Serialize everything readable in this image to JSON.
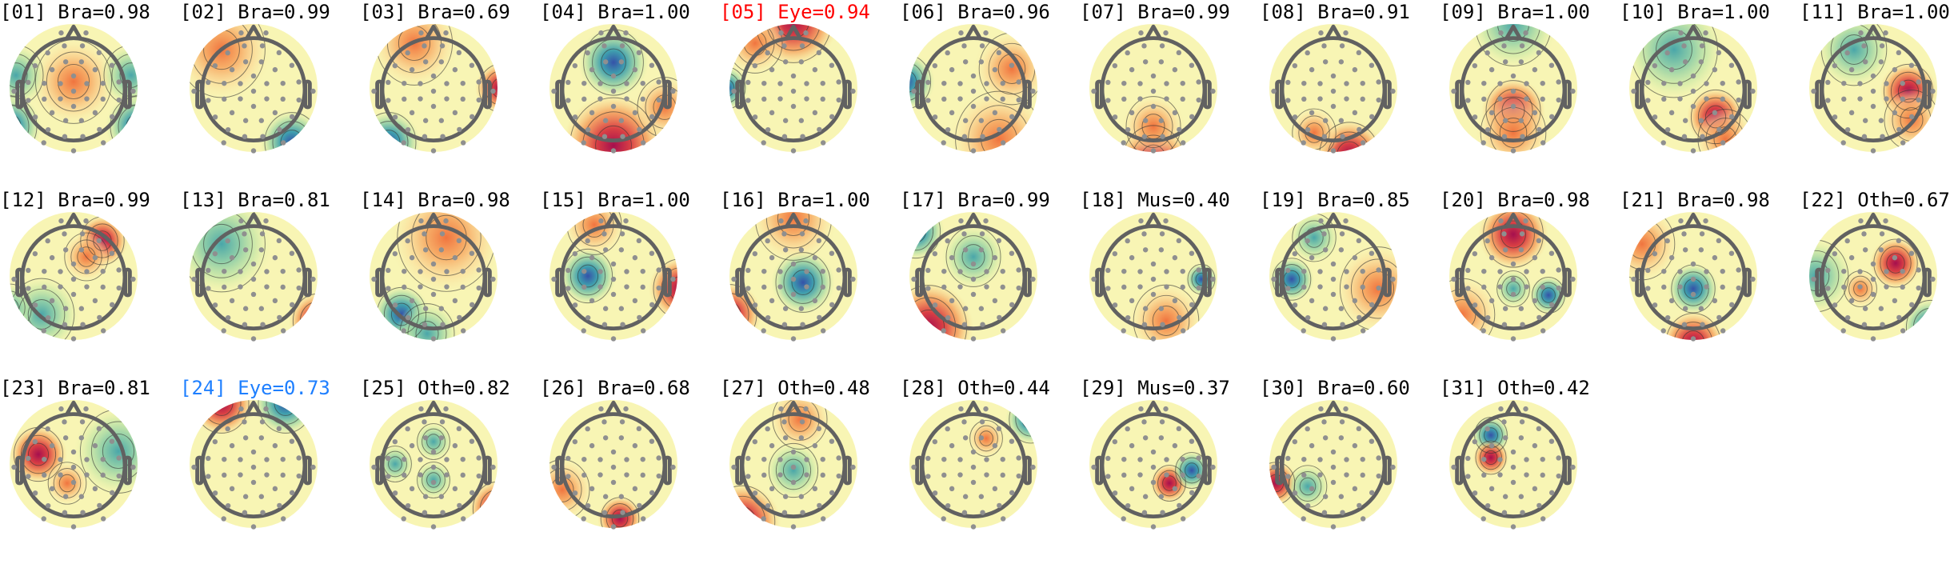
{
  "colors": {
    "default_title": "#000000",
    "eye_red": "#ff0000",
    "eye_blue": "#1e7fff"
  },
  "components": [
    {
      "title": "[01] Bra=0.98"
    },
    {
      "title": "[02] Bra=0.99"
    },
    {
      "title": "[03] Bra=0.69"
    },
    {
      "title": "[04] Bra=1.00"
    },
    {
      "title": "[05] Eye=0.94",
      "color": "#ff0000"
    },
    {
      "title": "[06] Bra=0.96"
    },
    {
      "title": "[07] Bra=0.99"
    },
    {
      "title": "[08] Bra=0.91"
    },
    {
      "title": "[09] Bra=1.00"
    },
    {
      "title": "[10] Bra=1.00"
    },
    {
      "title": "[11] Bra=1.00"
    },
    {
      "title": "[12] Bra=0.99"
    },
    {
      "title": "[13] Bra=0.81"
    },
    {
      "title": "[14] Bra=0.98"
    },
    {
      "title": "[15] Bra=1.00"
    },
    {
      "title": "[16] Bra=1.00"
    },
    {
      "title": "[17] Bra=0.99"
    },
    {
      "title": "[18] Mus=0.40"
    },
    {
      "title": "[19] Bra=0.85"
    },
    {
      "title": "[20] Bra=0.98"
    },
    {
      "title": "[21] Bra=0.98"
    },
    {
      "title": "[22] Oth=0.67"
    },
    {
      "title": "[23] Bra=0.81"
    },
    {
      "title": "[24] Eye=0.73",
      "color": "#1e7fff"
    },
    {
      "title": "[25] Oth=0.82"
    },
    {
      "title": "[26] Bra=0.68"
    },
    {
      "title": "[27] Oth=0.48"
    },
    {
      "title": "[28] Oth=0.44"
    },
    {
      "title": "[29] Mus=0.37"
    },
    {
      "title": "[30] Bra=0.60"
    },
    {
      "title": "[31] Oth=0.42"
    }
  ]
}
